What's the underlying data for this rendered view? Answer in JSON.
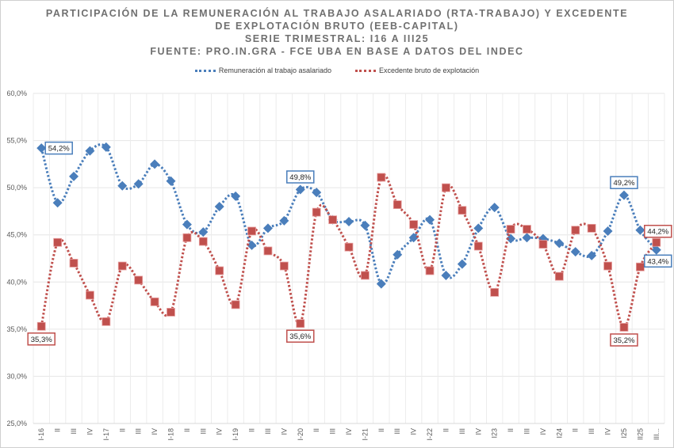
{
  "title_lines": [
    "PARTICIPACIÓN DE LA REMUNERACIÓN AL TRABAJO ASALARIADO (RTA-TRABAJO) Y EXCEDENTE",
    "DE EXPLOTACIÓN BRUTO (EEB-CAPITAL)",
    "SERIE TRIMESTRAL: I16 A III25",
    "FUENTE: PRO.IN.GRA - FCE UBA EN BASE A DATOS DEL INDEC"
  ],
  "chart_data": {
    "type": "line",
    "title": "PARTICIPACIÓN DE LA REMUNERACIÓN AL TRABAJO ASALARIADO (RTA-TRABAJO) Y EXCEDENTE DE EXPLOTACIÓN BRUTO (EEB-CAPITAL)",
    "xlabel": "",
    "ylabel": "",
    "ylim": [
      25,
      60
    ],
    "yticks": [
      "25,0%",
      "30,0%",
      "35,0%",
      "40,0%",
      "45,0%",
      "50,0%",
      "55,0%",
      "60,0%"
    ],
    "grid": true,
    "legend_position": "top-center",
    "categories": [
      "I-16",
      "II",
      "III",
      "IV",
      "I-17",
      "II",
      "III",
      "IV",
      "I-18",
      "II",
      "III",
      "IV",
      "I-19",
      "II",
      "III",
      "IV",
      "I-20",
      "II",
      "III",
      "IV",
      "I-21",
      "II",
      "III",
      "IV",
      "I-22",
      "II",
      "III",
      "IV",
      "I23",
      "II",
      "III",
      "IV",
      "I24",
      "II",
      "III",
      "IV",
      "I25",
      "II25",
      "III..."
    ],
    "series": [
      {
        "name": "Remuneración al trabajo asalariado",
        "color": "#4a7ebb",
        "marker": "diamond",
        "values": [
          54.2,
          48.4,
          51.2,
          53.9,
          54.3,
          50.2,
          50.4,
          52.5,
          50.7,
          46.1,
          45.3,
          48.0,
          49.1,
          43.9,
          45.7,
          46.5,
          49.8,
          49.5,
          46.6,
          46.4,
          46.0,
          39.8,
          42.9,
          44.7,
          46.6,
          40.7,
          41.9,
          45.7,
          47.9,
          44.6,
          44.7,
          44.6,
          44.1,
          43.2,
          42.8,
          45.4,
          49.2,
          45.5,
          43.4
        ],
        "data_labels": {
          "0": "54,2%",
          "16": "49,8%",
          "36": "49,2%",
          "38": "43,4%"
        }
      },
      {
        "name": "Excedente bruto de explotación",
        "color": "#c0504d",
        "marker": "square",
        "values": [
          35.3,
          44.2,
          42.0,
          38.6,
          35.8,
          41.7,
          40.2,
          37.9,
          36.8,
          44.7,
          44.3,
          41.2,
          37.6,
          45.4,
          43.3,
          41.7,
          35.6,
          47.4,
          46.6,
          43.7,
          40.7,
          51.1,
          48.2,
          46.1,
          41.2,
          50.0,
          47.6,
          43.8,
          38.9,
          45.6,
          45.6,
          44.0,
          40.6,
          45.5,
          45.7,
          41.7,
          35.2,
          41.6,
          44.2
        ],
        "data_labels": {
          "0": "35,3%",
          "16": "35,6%",
          "36": "35,2%",
          "38": "44,2%"
        }
      }
    ]
  }
}
